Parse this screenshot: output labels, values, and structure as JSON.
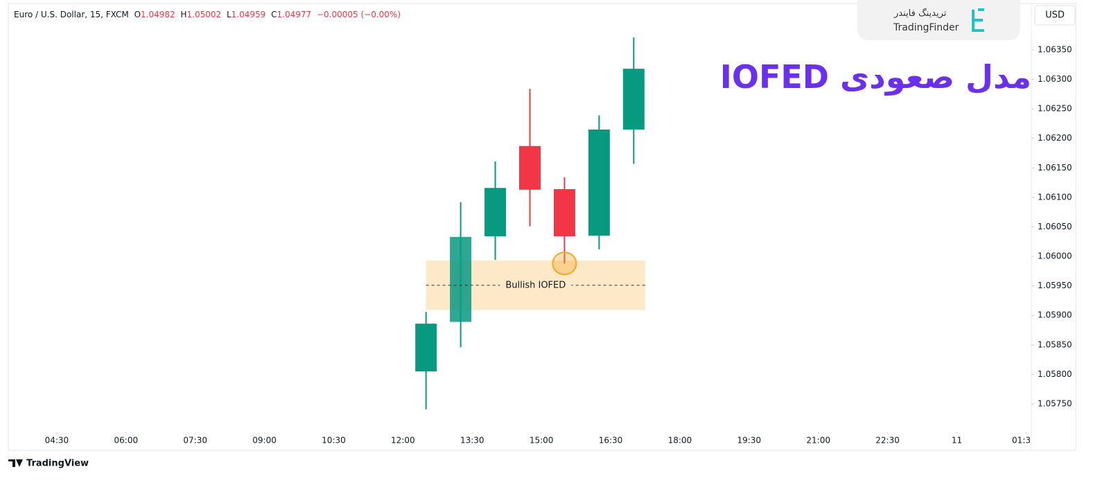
{
  "header": {
    "symbol": "Euro / U.S. Dollar, 15, FXCM",
    "ohlc": [
      {
        "key": "O",
        "value": "1.04982"
      },
      {
        "key": "H",
        "value": "1.05002"
      },
      {
        "key": "L",
        "value": "1.04959"
      },
      {
        "key": "C",
        "value": "1.04977"
      }
    ],
    "change": "−0.00005 (−0.00%)",
    "currency": "USD"
  },
  "brand": {
    "name_fa": "تریدینگ فایندر",
    "name_en": "TradingFinder",
    "footer": "TradingView"
  },
  "chart_data": {
    "type": "candlestick",
    "title": "مدل صعودی IOFED",
    "x": [
      12.5,
      13.25,
      14,
      14.75,
      15.5,
      16.25,
      17
    ],
    "open": [
      1.05805,
      1.05889,
      1.06034,
      1.06187,
      1.06114,
      1.06035,
      1.06215
    ],
    "high": [
      1.05906,
      1.06092,
      1.06161,
      1.06284,
      1.06134,
      1.06239,
      1.06371
    ],
    "low": [
      1.05741,
      1.05846,
      1.05994,
      1.06051,
      1.05988,
      1.06012,
      1.06157
    ],
    "close": [
      1.05886,
      1.06033,
      1.06116,
      1.06113,
      1.06034,
      1.06215,
      1.06318
    ],
    "up_color": "#089981",
    "down_color": "#f23645",
    "xlim": [
      3.45,
      25.6
    ],
    "xticks": [
      {
        "value": 4.5,
        "label": "04:30"
      },
      {
        "value": 6,
        "label": "06:00"
      },
      {
        "value": 7.5,
        "label": "07:30"
      },
      {
        "value": 9,
        "label": "09:00"
      },
      {
        "value": 10.5,
        "label": "10:30"
      },
      {
        "value": 12,
        "label": "12:00"
      },
      {
        "value": 13.5,
        "label": "13:30"
      },
      {
        "value": 15,
        "label": "15:00"
      },
      {
        "value": 16.5,
        "label": "16:30"
      },
      {
        "value": 18,
        "label": "18:00"
      },
      {
        "value": 19.5,
        "label": "19:30"
      },
      {
        "value": 21,
        "label": "21:00"
      },
      {
        "value": 22.5,
        "label": "22:30"
      },
      {
        "value": 24,
        "label": "11"
      },
      {
        "value": 25.5,
        "label": "01:3"
      }
    ],
    "ylim": [
      1.057065,
      1.064345
    ],
    "yticks": [
      {
        "value": 1.0635,
        "label": "1.06350"
      },
      {
        "value": 1.063,
        "label": "1.06300"
      },
      {
        "value": 1.0625,
        "label": "1.06250"
      },
      {
        "value": 1.062,
        "label": "1.06200"
      },
      {
        "value": 1.0615,
        "label": "1.06150"
      },
      {
        "value": 1.061,
        "label": "1.06100"
      },
      {
        "value": 1.0605,
        "label": "1.06050"
      },
      {
        "value": 1.06,
        "label": "1.06000"
      },
      {
        "value": 1.0595,
        "label": "1.05950"
      },
      {
        "value": 1.059,
        "label": "1.05900"
      },
      {
        "value": 1.0585,
        "label": "1.05850"
      },
      {
        "value": 1.058,
        "label": "1.05800"
      },
      {
        "value": 1.0575,
        "label": "1.05750"
      }
    ],
    "zone": {
      "x": [
        12.5,
        17.25
      ],
      "y": [
        1.05909,
        1.05993
      ],
      "mid": 1.05951,
      "label": "Bullish IOFED",
      "color": "#fde8c8"
    },
    "marker": {
      "x": 15.5,
      "y": 1.05988,
      "color": "#f5a623"
    }
  }
}
